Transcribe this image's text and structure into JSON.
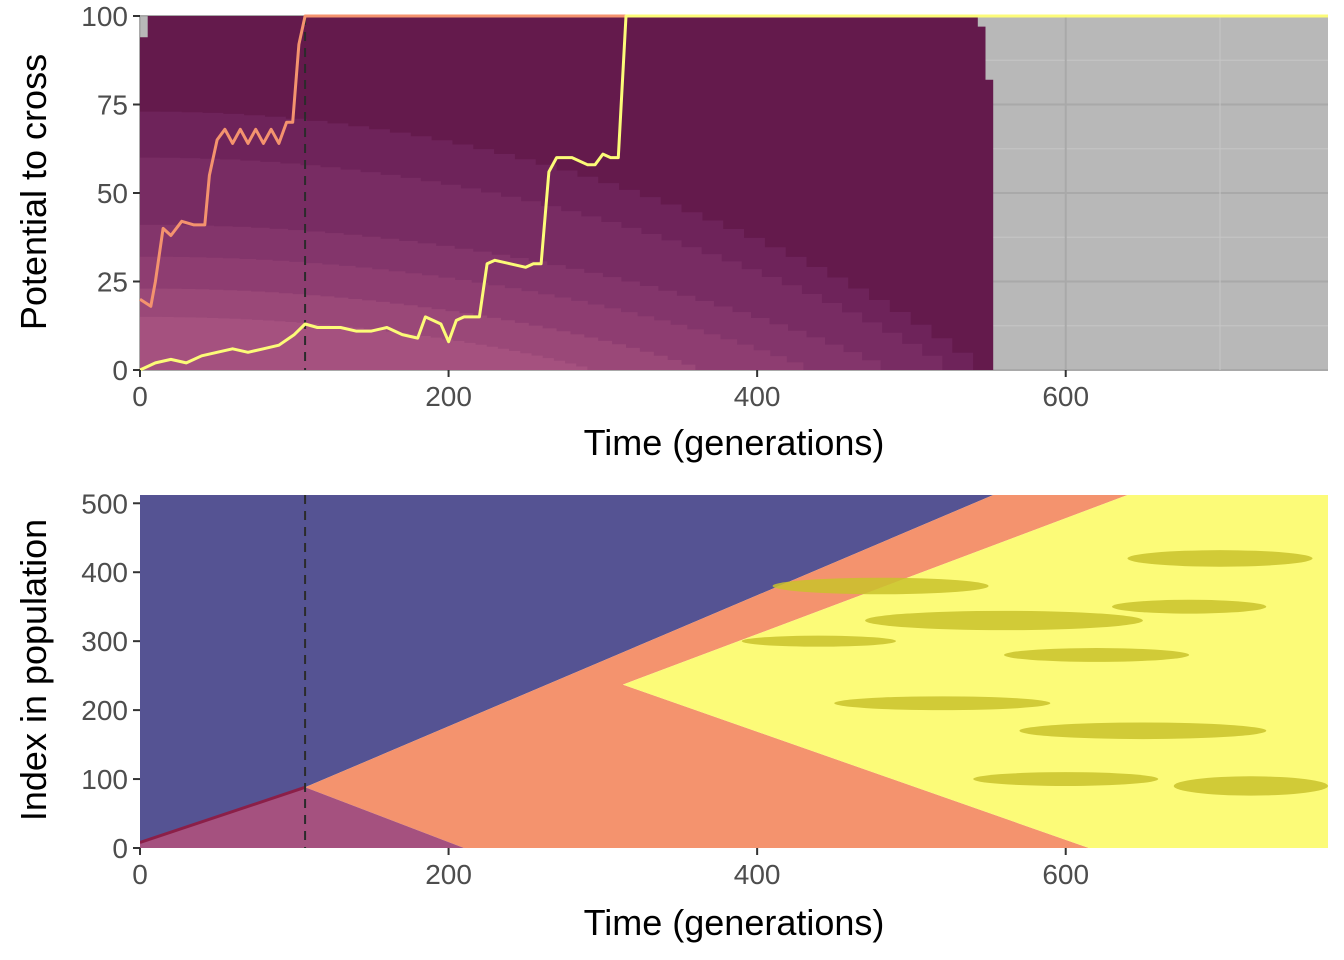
{
  "chart_data": [
    {
      "type": "area",
      "xlabel": "Time (generations)",
      "ylabel": "Potential to cross",
      "xlim": [
        0,
        770
      ],
      "ylim": [
        0,
        100
      ],
      "x_ticks": [
        0,
        200,
        400,
        600
      ],
      "y_ticks": [
        0,
        25,
        50,
        75,
        100
      ],
      "panel_background": "#b8b8b8",
      "grid": true,
      "fill_end_x": 553,
      "dashed_vline_x": 107,
      "bands": [
        {
          "color": "#a5517f",
          "y_start": 15,
          "y_end_x": 290
        },
        {
          "color": "#9a4878",
          "y_start": 23,
          "y_end_x": 360
        },
        {
          "color": "#8e3d71",
          "y_start": 32,
          "y_end_x": 430
        },
        {
          "color": "#83356b",
          "y_start": 41,
          "y_end_x": 480
        },
        {
          "color": "#782c63",
          "y_start": 60,
          "y_end_x": 520
        },
        {
          "color": "#6e235a",
          "y_start": 73,
          "y_end_x": 540
        },
        {
          "color": "#641a4c",
          "y_start": 94,
          "y_end_x": 553
        }
      ],
      "series": [
        {
          "color": "#f4936e",
          "x": [
            0,
            7,
            10,
            15,
            20,
            27,
            35,
            42,
            45,
            50,
            55,
            60,
            65,
            70,
            75,
            80,
            85,
            90,
            95,
            99,
            103,
            107,
            770
          ],
          "y": [
            20,
            18,
            25,
            40,
            38,
            42,
            41,
            41,
            55,
            65,
            68,
            64,
            68,
            64,
            68,
            64,
            68,
            64,
            70,
            70,
            92,
            100,
            100
          ]
        },
        {
          "color": "#fcfb78",
          "x": [
            0,
            10,
            20,
            30,
            40,
            50,
            60,
            70,
            80,
            90,
            100,
            107,
            115,
            130,
            140,
            150,
            160,
            170,
            180,
            185,
            190,
            195,
            200,
            205,
            210,
            220,
            225,
            230,
            240,
            250,
            255,
            260,
            265,
            270,
            280,
            290,
            295,
            300,
            305,
            310,
            315,
            770
          ],
          "y": [
            0,
            2,
            3,
            2,
            4,
            5,
            6,
            5,
            6,
            7,
            10,
            13,
            12,
            12,
            11,
            11,
            12,
            10,
            9,
            15,
            14,
            13,
            8,
            14,
            15,
            15,
            30,
            31,
            30,
            29,
            30,
            30,
            56,
            60,
            60,
            58,
            58,
            61,
            60,
            60,
            100,
            100
          ]
        }
      ]
    },
    {
      "type": "heatmap",
      "xlabel": "Time (generations)",
      "ylabel": "Index in population",
      "xlim": [
        0,
        770
      ],
      "ylim": [
        0,
        512
      ],
      "x_ticks": [
        0,
        200,
        400,
        600
      ],
      "y_ticks": [
        0,
        100,
        200,
        300,
        400,
        500
      ],
      "dashed_vline_x": 107,
      "regions": [
        {
          "name_color": "#555393",
          "points": [
            [
              0,
              512
            ],
            [
              553,
              512
            ],
            [
              107,
              88
            ],
            [
              0,
              0
            ]
          ]
        },
        {
          "name_color": "#f4936e",
          "points": [
            [
              553,
              512
            ],
            [
              640,
              512
            ],
            [
              313,
              237
            ],
            [
              615,
              0
            ],
            [
              210,
              0
            ],
            [
              107,
              88
            ]
          ]
        },
        {
          "name_color": "#fcfb78",
          "points": [
            [
              640,
              512
            ],
            [
              770,
              512
            ],
            [
              770,
              0
            ],
            [
              615,
              0
            ],
            [
              313,
              237
            ]
          ]
        },
        {
          "name_color": "#a5517f",
          "points": [
            [
              0,
              0
            ],
            [
              210,
              0
            ],
            [
              107,
              88
            ],
            [
              0,
              8
            ]
          ]
        }
      ],
      "boundary_color": "#8b1f48"
    }
  ]
}
